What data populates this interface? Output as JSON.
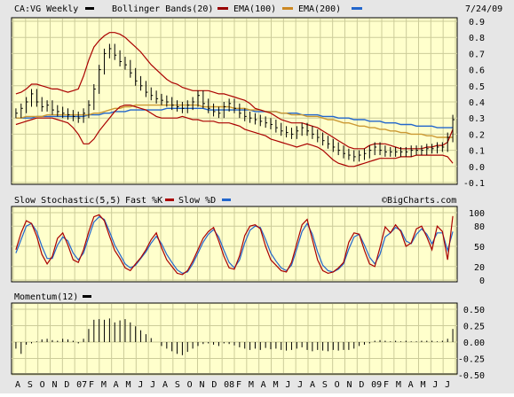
{
  "header": {
    "symbol": "CA:VG Weekly",
    "legend": [
      {
        "label": "Bollinger Bands(20)",
        "color": "#000000"
      },
      {
        "label": "EMA(100)",
        "color": "#990000"
      },
      {
        "label": "EMA(200)",
        "color": "#cc8822"
      },
      {
        "label": "",
        "color": "#2266cc"
      }
    ],
    "date": "7/24/09",
    "watermark": "©BigCharts.com"
  },
  "colors": {
    "panel_bg": "#ffffcc",
    "grid": "#cccc99",
    "price": "#000000",
    "bollinger": "#aa0000",
    "ema100": "#cc9933",
    "ema200": "#2266cc",
    "stoch_fast": "#aa0000",
    "stoch_slow": "#2266cc",
    "momentum": "#000000"
  },
  "chart_data": [
    {
      "type": "line",
      "panel": "price",
      "title": "CA:VG Weekly",
      "x_labels": [
        "A",
        "S",
        "O",
        "N",
        "D",
        "07",
        "F",
        "M",
        "A",
        "M",
        "J",
        "J",
        "A",
        "S",
        "O",
        "N",
        "D",
        "08",
        "F",
        "M",
        "A",
        "M",
        "J",
        "J",
        "A",
        "S",
        "O",
        "N",
        "D",
        "09",
        "F",
        "M",
        "A",
        "M",
        "J",
        "J"
      ],
      "y_ticks": [
        -0.1,
        0.0,
        0.1,
        0.2,
        0.3,
        0.4,
        0.5,
        0.6,
        0.7,
        0.8,
        0.9
      ],
      "y_tick_labels": [
        "-0.1",
        "0.0",
        "0.1",
        "0.2",
        "0.3",
        "0.4",
        "0.5",
        "0.6",
        "0.7",
        "0.8",
        "0.9"
      ],
      "ylim": [
        -0.1,
        0.9
      ],
      "grid": true,
      "series": [
        {
          "name": "CA:VG Weekly",
          "values": [
            0.33,
            0.36,
            0.4,
            0.45,
            0.4,
            0.37,
            0.38,
            0.35,
            0.34,
            0.33,
            0.32,
            0.31,
            0.3,
            0.33,
            0.38,
            0.48,
            0.6,
            0.7,
            0.73,
            0.69,
            0.65,
            0.63,
            0.58,
            0.53,
            0.5,
            0.46,
            0.44,
            0.42,
            0.41,
            0.4,
            0.38,
            0.37,
            0.36,
            0.38,
            0.4,
            0.44,
            0.39,
            0.36,
            0.34,
            0.33,
            0.37,
            0.39,
            0.36,
            0.33,
            0.31,
            0.3,
            0.29,
            0.28,
            0.27,
            0.26,
            0.24,
            0.22,
            0.21,
            0.2,
            0.22,
            0.24,
            0.22,
            0.2,
            0.18,
            0.16,
            0.14,
            0.12,
            0.1,
            0.08,
            0.07,
            0.06,
            0.07,
            0.08,
            0.1,
            0.12,
            0.1,
            0.09,
            0.09,
            0.09,
            0.09,
            0.09,
            0.1,
            0.1,
            0.1,
            0.11,
            0.11,
            0.12,
            0.12,
            0.18,
            0.29
          ]
        },
        {
          "name": "Bollinger upper",
          "values": [
            0.45,
            0.46,
            0.48,
            0.51,
            0.51,
            0.5,
            0.49,
            0.48,
            0.48,
            0.47,
            0.46,
            0.47,
            0.48,
            0.56,
            0.66,
            0.74,
            0.78,
            0.81,
            0.83,
            0.83,
            0.82,
            0.8,
            0.77,
            0.74,
            0.71,
            0.67,
            0.63,
            0.6,
            0.57,
            0.54,
            0.52,
            0.51,
            0.49,
            0.48,
            0.47,
            0.47,
            0.47,
            0.47,
            0.46,
            0.45,
            0.45,
            0.44,
            0.43,
            0.42,
            0.41,
            0.39,
            0.36,
            0.35,
            0.34,
            0.33,
            0.31,
            0.29,
            0.28,
            0.27,
            0.27,
            0.27,
            0.26,
            0.25,
            0.24,
            0.22,
            0.2,
            0.18,
            0.16,
            0.14,
            0.12,
            0.11,
            0.11,
            0.11,
            0.13,
            0.14,
            0.14,
            0.14,
            0.13,
            0.12,
            0.11,
            0.11,
            0.11,
            0.11,
            0.11,
            0.12,
            0.12,
            0.13,
            0.13,
            0.15,
            0.23
          ]
        },
        {
          "name": "Bollinger lower",
          "values": [
            0.26,
            0.27,
            0.28,
            0.29,
            0.3,
            0.3,
            0.3,
            0.3,
            0.29,
            0.28,
            0.27,
            0.24,
            0.2,
            0.14,
            0.14,
            0.17,
            0.22,
            0.26,
            0.3,
            0.34,
            0.37,
            0.38,
            0.38,
            0.37,
            0.36,
            0.35,
            0.33,
            0.31,
            0.3,
            0.3,
            0.3,
            0.3,
            0.31,
            0.3,
            0.29,
            0.29,
            0.28,
            0.28,
            0.28,
            0.27,
            0.27,
            0.27,
            0.26,
            0.25,
            0.23,
            0.22,
            0.21,
            0.2,
            0.19,
            0.17,
            0.16,
            0.15,
            0.14,
            0.13,
            0.12,
            0.13,
            0.14,
            0.13,
            0.12,
            0.1,
            0.07,
            0.04,
            0.02,
            0.01,
            0.0,
            0.0,
            0.01,
            0.02,
            0.03,
            0.04,
            0.05,
            0.05,
            0.05,
            0.05,
            0.06,
            0.06,
            0.06,
            0.07,
            0.07,
            0.07,
            0.07,
            0.07,
            0.07,
            0.06,
            0.02
          ]
        },
        {
          "name": "EMA(100)",
          "values": [
            0.3,
            0.3,
            0.31,
            0.31,
            0.31,
            0.31,
            0.32,
            0.32,
            0.32,
            0.32,
            0.32,
            0.32,
            0.32,
            0.32,
            0.32,
            0.33,
            0.33,
            0.34,
            0.35,
            0.36,
            0.36,
            0.37,
            0.37,
            0.38,
            0.38,
            0.38,
            0.38,
            0.38,
            0.38,
            0.38,
            0.38,
            0.38,
            0.38,
            0.38,
            0.38,
            0.38,
            0.37,
            0.37,
            0.37,
            0.37,
            0.37,
            0.37,
            0.36,
            0.36,
            0.36,
            0.35,
            0.35,
            0.35,
            0.34,
            0.34,
            0.34,
            0.33,
            0.33,
            0.32,
            0.32,
            0.32,
            0.31,
            0.31,
            0.31,
            0.3,
            0.29,
            0.29,
            0.28,
            0.27,
            0.27,
            0.26,
            0.25,
            0.25,
            0.24,
            0.24,
            0.23,
            0.23,
            0.22,
            0.22,
            0.21,
            0.21,
            0.2,
            0.2,
            0.2,
            0.19,
            0.19,
            0.18,
            0.18,
            0.18,
            0.18
          ]
        },
        {
          "name": "EMA(200)",
          "values": [
            0.3,
            0.3,
            0.3,
            0.3,
            0.31,
            0.31,
            0.31,
            0.31,
            0.31,
            0.31,
            0.31,
            0.31,
            0.31,
            0.31,
            0.32,
            0.32,
            0.32,
            0.33,
            0.33,
            0.34,
            0.34,
            0.34,
            0.35,
            0.35,
            0.35,
            0.35,
            0.35,
            0.35,
            0.35,
            0.36,
            0.36,
            0.36,
            0.36,
            0.36,
            0.36,
            0.36,
            0.36,
            0.35,
            0.35,
            0.35,
            0.35,
            0.35,
            0.35,
            0.35,
            0.35,
            0.35,
            0.34,
            0.34,
            0.34,
            0.34,
            0.34,
            0.33,
            0.33,
            0.33,
            0.33,
            0.32,
            0.32,
            0.32,
            0.32,
            0.31,
            0.31,
            0.31,
            0.3,
            0.3,
            0.3,
            0.29,
            0.29,
            0.29,
            0.28,
            0.28,
            0.28,
            0.27,
            0.27,
            0.27,
            0.26,
            0.26,
            0.26,
            0.25,
            0.25,
            0.25,
            0.25,
            0.24,
            0.24,
            0.24,
            0.24
          ]
        }
      ]
    },
    {
      "type": "line",
      "panel": "stochastic",
      "title": "Slow Stochastic(5,5)",
      "legend": [
        "Fast %K",
        "Slow %D"
      ],
      "y_ticks": [
        0,
        20,
        50,
        80,
        100
      ],
      "y_tick_labels": [
        "0",
        "20",
        "50",
        "80",
        "100"
      ],
      "ylim": [
        0,
        100
      ],
      "grid": true,
      "series": [
        {
          "name": "Fast %K",
          "values": [
            45,
            70,
            88,
            84,
            65,
            38,
            24,
            35,
            62,
            70,
            52,
            30,
            26,
            45,
            72,
            94,
            97,
            88,
            65,
            44,
            32,
            18,
            14,
            24,
            33,
            45,
            60,
            70,
            48,
            30,
            20,
            10,
            8,
            14,
            28,
            45,
            62,
            72,
            78,
            58,
            35,
            18,
            16,
            36,
            66,
            80,
            82,
            76,
            50,
            30,
            22,
            14,
            12,
            26,
            54,
            82,
            90,
            60,
            30,
            14,
            10,
            12,
            18,
            26,
            56,
            70,
            68,
            44,
            24,
            20,
            48,
            79,
            70,
            82,
            72,
            50,
            55,
            76,
            80,
            64,
            45,
            80,
            72,
            30,
            95
          ]
        },
        {
          "name": "Slow %D",
          "values": [
            40,
            60,
            80,
            84,
            72,
            50,
            32,
            32,
            52,
            64,
            58,
            40,
            30,
            40,
            64,
            86,
            94,
            90,
            72,
            52,
            38,
            24,
            18,
            22,
            32,
            42,
            55,
            65,
            54,
            38,
            26,
            15,
            10,
            12,
            24,
            40,
            56,
            68,
            75,
            64,
            44,
            26,
            18,
            30,
            55,
            74,
            80,
            78,
            60,
            40,
            28,
            18,
            14,
            22,
            46,
            72,
            84,
            68,
            42,
            22,
            14,
            12,
            16,
            24,
            46,
            64,
            68,
            52,
            34,
            24,
            38,
            64,
            70,
            78,
            74,
            58,
            54,
            68,
            76,
            68,
            54,
            70,
            70,
            44,
            72
          ]
        }
      ]
    },
    {
      "type": "bar",
      "panel": "momentum",
      "title": "Momentum(12)",
      "y_ticks": [
        0.5,
        0.25,
        0.0,
        -0.25,
        -0.5
      ],
      "y_tick_labels": [
        "0.50",
        "0.25",
        "0.00",
        "-0.25",
        "-0.50"
      ],
      "ylim": [
        -0.5,
        0.5
      ],
      "grid": true,
      "values": [
        -0.1,
        -0.18,
        -0.04,
        -0.02,
        0.01,
        0.04,
        0.05,
        0.03,
        0.02,
        0.05,
        0.04,
        0.02,
        -0.02,
        0.05,
        0.2,
        0.34,
        0.35,
        0.34,
        0.36,
        0.3,
        0.33,
        0.35,
        0.3,
        0.24,
        0.18,
        0.12,
        0.06,
        0.0,
        -0.06,
        -0.1,
        -0.14,
        -0.18,
        -0.2,
        -0.15,
        -0.1,
        -0.06,
        -0.03,
        -0.02,
        -0.04,
        -0.06,
        -0.02,
        -0.03,
        -0.05,
        -0.08,
        -0.1,
        -0.12,
        -0.1,
        -0.12,
        -0.09,
        -0.11,
        -0.1,
        -0.12,
        -0.13,
        -0.12,
        -0.1,
        -0.08,
        -0.12,
        -0.14,
        -0.12,
        -0.13,
        -0.14,
        -0.12,
        -0.13,
        -0.12,
        -0.12,
        -0.1,
        -0.06,
        -0.04,
        -0.02,
        0.02,
        0.03,
        0.02,
        0.01,
        0.02,
        0.01,
        0.02,
        0.01,
        0.01,
        0.02,
        0.02,
        0.02,
        0.01,
        0.02,
        0.05,
        0.2
      ]
    }
  ]
}
